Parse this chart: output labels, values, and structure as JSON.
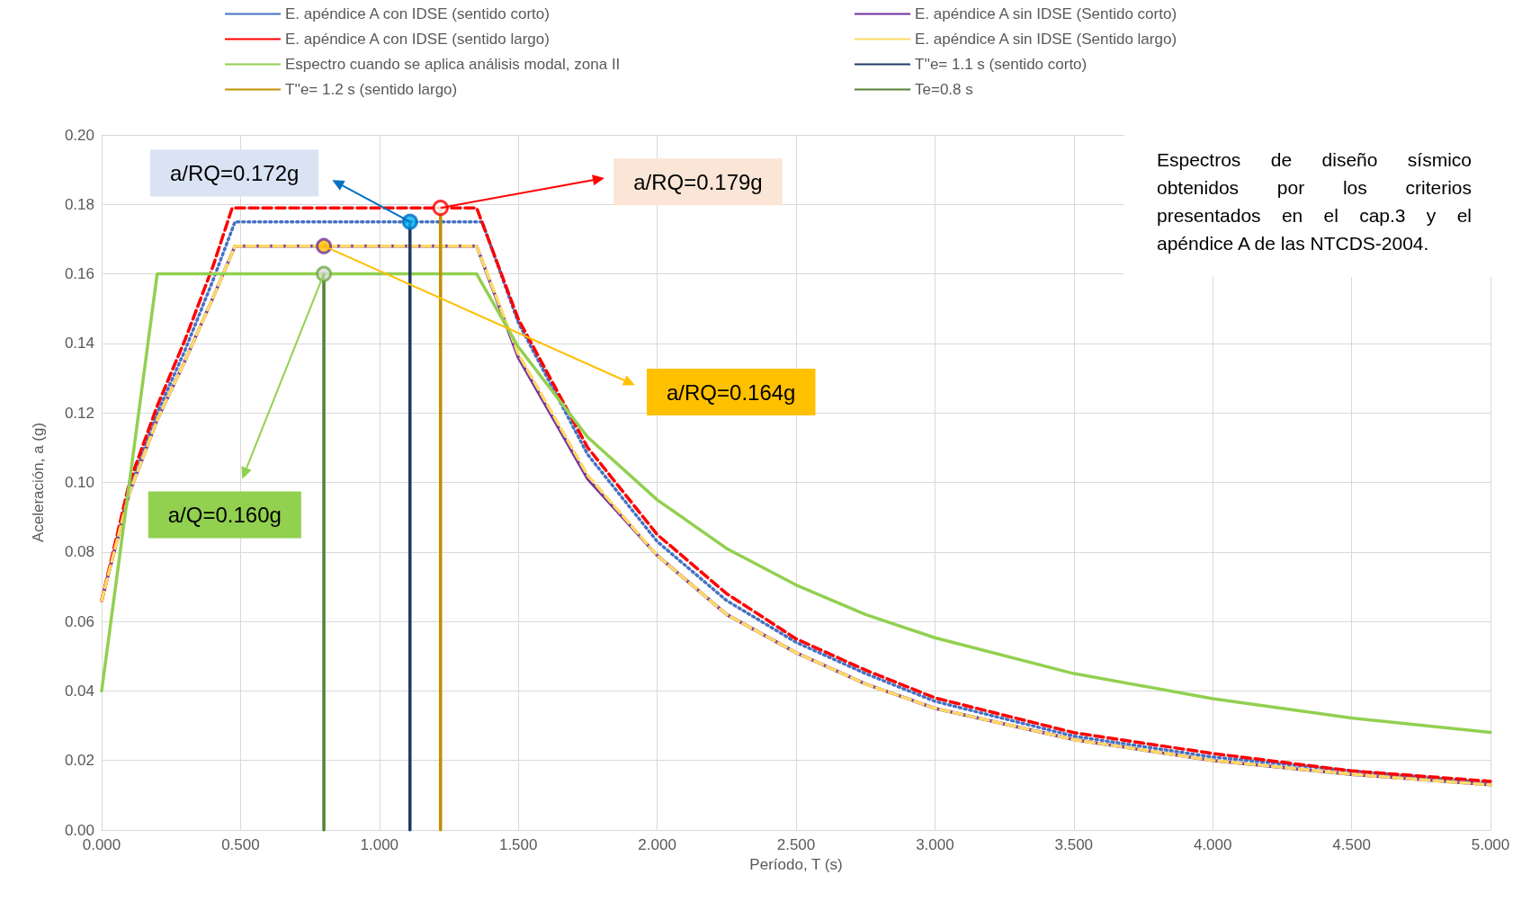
{
  "chart_data": {
    "type": "line",
    "xlabel": "Período, T (s)",
    "ylabel": "Aceleración, a (g)",
    "xlim": [
      0,
      5
    ],
    "ylim": [
      0,
      0.2
    ],
    "xticks": [
      {
        "value": 0,
        "label": "0.000"
      },
      {
        "value": 0.5,
        "label": "0.500"
      },
      {
        "value": 1,
        "label": "1.000"
      },
      {
        "value": 1.5,
        "label": "1.500"
      },
      {
        "value": 2,
        "label": "2.000"
      },
      {
        "value": 2.5,
        "label": "2.500"
      },
      {
        "value": 3,
        "label": "3.000"
      },
      {
        "value": 3.5,
        "label": "3.500"
      },
      {
        "value": 4,
        "label": "4.000"
      },
      {
        "value": 4.5,
        "label": "4.500"
      },
      {
        "value": 5,
        "label": "5.000"
      }
    ],
    "yticks": [
      {
        "value": 0,
        "label": "0.00"
      },
      {
        "value": 0.02,
        "label": "0.02"
      },
      {
        "value": 0.04,
        "label": "0.04"
      },
      {
        "value": 0.06,
        "label": "0.06"
      },
      {
        "value": 0.08,
        "label": "0.08"
      },
      {
        "value": 0.1,
        "label": "0.10"
      },
      {
        "value": 0.12,
        "label": "0.12"
      },
      {
        "value": 0.14,
        "label": "0.14"
      },
      {
        "value": 0.16,
        "label": "0.16"
      },
      {
        "value": 0.18,
        "label": "0.18"
      },
      {
        "value": 0.2,
        "label": "0.20"
      }
    ],
    "grid": true,
    "legend": "top",
    "marker": "none",
    "series": [
      {
        "name": "E. apéndice A con IDSE (sentido corto)",
        "color": "#4472c4",
        "line_style": "dotted",
        "x": [
          0,
          0.1,
          0.2,
          0.3,
          0.4,
          0.48,
          1.37,
          1.5,
          1.75,
          2,
          2.25,
          2.5,
          2.75,
          3,
          3.5,
          4,
          4.5,
          5
        ],
        "values": [
          0.066,
          0.098,
          0.12,
          0.138,
          0.158,
          0.175,
          0.175,
          0.146,
          0.108,
          0.083,
          0.066,
          0.054,
          0.045,
          0.037,
          0.027,
          0.021,
          0.017,
          0.0135
        ]
      },
      {
        "name": "E. apéndice A sin IDSE (Sentido corto)",
        "color": "#7030a0",
        "line_style": "solid",
        "x": [
          0,
          0.1,
          0.2,
          0.3,
          0.4,
          0.48,
          1.35,
          1.5,
          1.75,
          2,
          2.25,
          2.5,
          2.75,
          3,
          3.5,
          4,
          4.5,
          5
        ],
        "values": [
          0.066,
          0.097,
          0.118,
          0.135,
          0.153,
          0.168,
          0.168,
          0.136,
          0.101,
          0.079,
          0.062,
          0.051,
          0.042,
          0.035,
          0.026,
          0.02,
          0.016,
          0.013
        ]
      },
      {
        "name": "E. apéndice A con IDSE (sentido largo)",
        "color": "#ff0000",
        "line_style": "dashed",
        "x": [
          0,
          0.1,
          0.2,
          0.3,
          0.4,
          0.47,
          1.35,
          1.5,
          1.75,
          2,
          2.25,
          2.5,
          2.75,
          3,
          3.5,
          4,
          4.5,
          5
        ],
        "values": [
          0.066,
          0.1,
          0.122,
          0.141,
          0.162,
          0.179,
          0.179,
          0.147,
          0.11,
          0.085,
          0.068,
          0.055,
          0.046,
          0.038,
          0.028,
          0.022,
          0.017,
          0.014
        ]
      },
      {
        "name": "E. apéndice A sin IDSE (Sentido largo)",
        "color": "#ffd966",
        "line_style": "dashed",
        "x": [
          0,
          0.1,
          0.2,
          0.3,
          0.4,
          0.48,
          1.35,
          1.5,
          1.75,
          2,
          2.25,
          2.5,
          2.75,
          3,
          3.5,
          4,
          4.5,
          5
        ],
        "values": [
          0.066,
          0.097,
          0.118,
          0.135,
          0.153,
          0.168,
          0.168,
          0.137,
          0.102,
          0.079,
          0.062,
          0.051,
          0.042,
          0.035,
          0.026,
          0.02,
          0.016,
          0.013
        ]
      },
      {
        "name": "Espectro cuando se aplica análisis modal, zona II",
        "color": "#92d050",
        "line_style": "solid",
        "x": [
          0,
          0.2,
          1.35,
          1.5,
          1.75,
          2,
          2.25,
          2.5,
          2.75,
          3,
          3.5,
          4,
          4.5,
          5
        ],
        "values": [
          0.04,
          0.16,
          0.16,
          0.139,
          0.113,
          0.095,
          0.081,
          0.0705,
          0.062,
          0.0553,
          0.045,
          0.0378,
          0.0322,
          0.0281
        ]
      },
      {
        "name": "T''e= 1.1 s (sentido corto)",
        "color": "#203864",
        "line_style": "solid",
        "x": [
          1.11,
          1.11
        ],
        "values": [
          0,
          0.175
        ]
      },
      {
        "name": "T''e= 1.2 s (sentido largo)",
        "color": "#bf9000",
        "line_style": "solid",
        "x": [
          1.22,
          1.22
        ],
        "values": [
          0,
          0.179
        ]
      },
      {
        "name": "Te=0.8 s",
        "color": "#548235",
        "line_style": "solid",
        "x": [
          0.8,
          0.8
        ],
        "values": [
          0,
          0.16
        ]
      },
      {
        "type": "scatter",
        "marker": "circle",
        "colors": [
          "#00b0f0",
          "#ffffff",
          "#ffc000",
          "#d9d9d9"
        ],
        "x": [
          1.11,
          1.22,
          0.8,
          0.8
        ],
        "values": [
          0.175,
          0.179,
          0.168,
          0.16
        ]
      }
    ],
    "annotations": [
      "a/RQ=0.172g",
      "a/RQ=0.179g",
      "a/RQ=0.164g",
      "a/Q=0.160g",
      "Espectros de diseño sísmico obtenidos por los criterios presentados en el cap.3 y el apéndice A de las NTCDS-2004."
    ]
  }
}
